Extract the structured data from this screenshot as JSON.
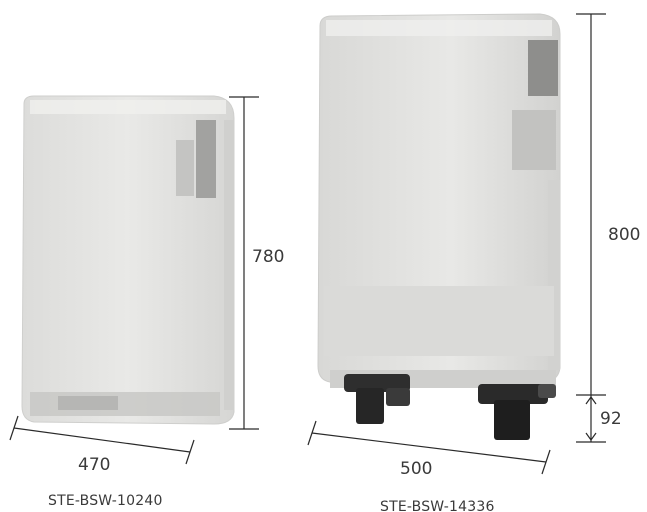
{
  "products": [
    {
      "model": "STE-BSW-10240",
      "dimensions": {
        "height": "780",
        "width": "470"
      },
      "colors": {
        "body": "#e6e6e4",
        "panel": "#9e9e9c"
      }
    },
    {
      "model": "STE-BSW-14336",
      "dimensions": {
        "height": "800",
        "wheel_height": "92",
        "width": "500"
      },
      "colors": {
        "body": "#e4e4e2",
        "panel": "#8e8e8c",
        "wheels": "#2e2e2e"
      }
    }
  ]
}
